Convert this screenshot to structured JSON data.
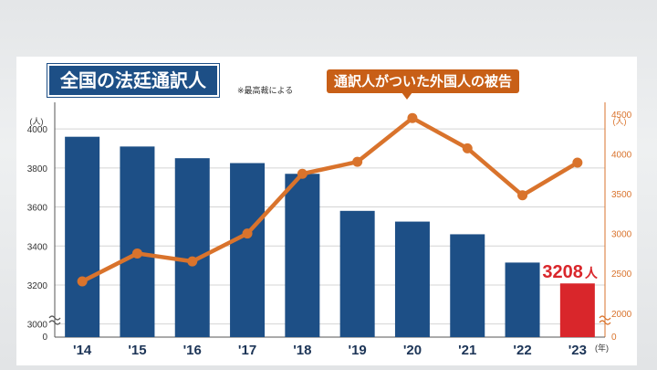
{
  "header": {
    "title": "全国の法廷通訳人",
    "source_note": "※最高裁による"
  },
  "legend": {
    "line_label": "通訳人がついた外国人の被告"
  },
  "colors": {
    "bar": "#1d4f86",
    "bar_highlight": "#d9262b",
    "line": "#d9732c",
    "title_bg": "#1d4f86",
    "legend_bg": "#c85f17"
  },
  "highlight_label": {
    "value": "3208",
    "unit": "人"
  },
  "chart_data": {
    "type": "bar",
    "categories": [
      "'14",
      "'15",
      "'16",
      "'17",
      "'18",
      "'19",
      "'20",
      "'21",
      "'22",
      "'23"
    ],
    "xunit": "(年)",
    "series": [
      {
        "type": "bar",
        "axis": "left",
        "values": [
          3960,
          3910,
          3850,
          3825,
          3770,
          3580,
          3525,
          3460,
          3315,
          3208
        ],
        "highlight_index": 9
      },
      {
        "type": "line",
        "axis": "right",
        "values": [
          2400,
          2750,
          2650,
          3000,
          3750,
          3900,
          4450,
          4070,
          3480,
          3890
        ]
      }
    ],
    "left_axis": {
      "ticks": [
        3000,
        3200,
        3400,
        3600,
        3800,
        4000
      ],
      "zero_label": "0",
      "unit": "(人)",
      "range": [
        2900,
        4000
      ],
      "axis_break": true
    },
    "right_axis": {
      "ticks": [
        2000,
        2500,
        3000,
        3500,
        4000,
        4500
      ],
      "zero_label": "0",
      "unit": "(人)",
      "range": [
        1700,
        4500
      ],
      "axis_break": true
    }
  }
}
